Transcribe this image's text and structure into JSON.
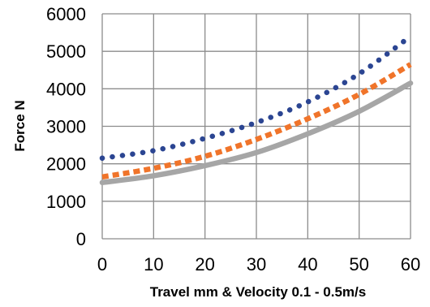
{
  "chart_data": {
    "type": "line",
    "xlabel": "Travel mm & Velocity 0.1 - 0.5m/s",
    "ylabel": "Force N",
    "xlim": [
      0,
      60
    ],
    "ylim": [
      0,
      6000
    ],
    "x_ticks": [
      0,
      10,
      20,
      30,
      40,
      50,
      60
    ],
    "y_ticks": [
      0,
      1000,
      2000,
      3000,
      4000,
      5000,
      6000
    ],
    "grid": true,
    "legend": "none",
    "x": [
      0,
      10,
      20,
      30,
      40,
      50,
      60
    ],
    "series": [
      {
        "values": [
          2150,
          2350,
          2680,
          3100,
          3650,
          4400,
          5400
        ],
        "color": "#2b4592",
        "style": "dotted"
      },
      {
        "values": [
          1650,
          1880,
          2200,
          2650,
          3200,
          3850,
          4650
        ],
        "color": "#f0742a",
        "style": "dashed"
      },
      {
        "values": [
          1500,
          1680,
          1950,
          2300,
          2800,
          3400,
          4150
        ],
        "color": "#a6a6a6",
        "style": "solid"
      }
    ]
  }
}
